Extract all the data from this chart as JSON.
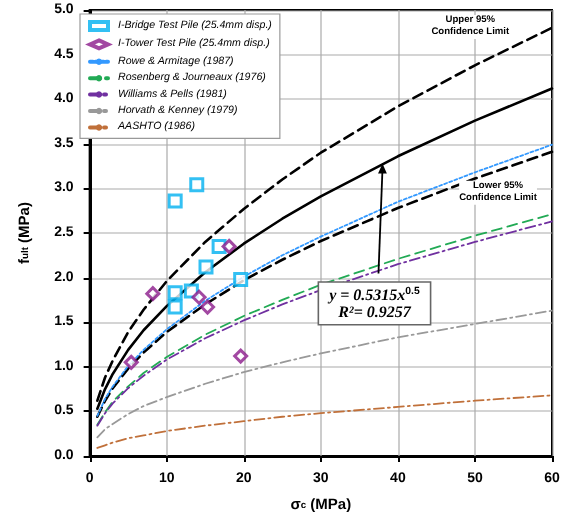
{
  "chart_data": {
    "type": "line",
    "xlabel": "σ$_{c}$ (MPa)",
    "ylabel": "f$_{ult}$ (MPa)",
    "x": [
      1,
      2,
      3,
      5,
      7,
      10,
      15,
      20,
      25,
      30,
      40,
      50,
      60
    ],
    "series": [
      {
        "name": "I-Bridge Test Pile (25.4mm disp.)",
        "type": "scatter",
        "marker": "square",
        "color": "#00b0f0",
        "x": [
          11.1,
          11.1,
          13.2,
          15.1,
          16.8,
          19.6,
          11.1,
          13.9
        ],
        "values": [
          1.83,
          1.67,
          1.85,
          2.12,
          2.35,
          1.98,
          2.86,
          3.04
        ]
      },
      {
        "name": "I-Tower Test Pile (25.4mm disp.)",
        "type": "scatter",
        "marker": "diamond",
        "color": "#8b1a8b",
        "x": [
          18.1,
          8.2,
          14.2,
          15.3,
          5.4,
          19.6
        ],
        "values": [
          2.35,
          1.82,
          1.78,
          1.67,
          1.05,
          1.12
        ]
      },
      {
        "name": "Rowe & Armitage (1987)",
        "color": "#3399ff",
        "line_style": "dotted",
        "values": [
          0.45,
          0.64,
          0.78,
          1.01,
          1.19,
          1.42,
          1.74,
          2.01,
          2.25,
          2.46,
          2.85,
          3.18,
          3.49
        ]
      },
      {
        "name": "Rosenberg & Journeaux (1976)",
        "color": "#22aa55",
        "line_style": "dashed",
        "values": [
          0.35,
          0.49,
          0.61,
          0.78,
          0.93,
          1.11,
          1.36,
          1.57,
          1.75,
          1.92,
          2.21,
          2.47,
          2.71
        ]
      },
      {
        "name": "Williams & Pells (1981)",
        "color": "#7030a0",
        "line_style": "dashdot",
        "values": [
          0.34,
          0.48,
          0.59,
          0.76,
          0.9,
          1.08,
          1.32,
          1.52,
          1.7,
          1.86,
          2.15,
          2.4,
          2.63
        ]
      },
      {
        "name": "Horvath & Kenney (1979)",
        "color": "#999999",
        "line_style": "dashdot",
        "values": [
          0.21,
          0.3,
          0.36,
          0.47,
          0.56,
          0.66,
          0.81,
          0.94,
          1.05,
          1.15,
          1.33,
          1.48,
          1.63
        ]
      },
      {
        "name": "AASHTO (1986)",
        "color": "#c0703a",
        "line_style": "dashdot",
        "values": [
          0.09,
          0.12,
          0.15,
          0.2,
          0.23,
          0.28,
          0.34,
          0.39,
          0.44,
          0.48,
          0.55,
          0.62,
          0.68
        ]
      },
      {
        "color": "#000000",
        "line_style": "solid",
        "values": [
          0.53,
          0.75,
          0.92,
          1.19,
          1.41,
          1.68,
          2.06,
          2.38,
          2.66,
          2.91,
          3.36,
          3.76,
          4.12
        ]
      },
      {
        "color": "#000000",
        "line_style": "dashed",
        "values": [
          0.62,
          0.88,
          1.07,
          1.39,
          1.64,
          1.96,
          2.4,
          2.77,
          3.1,
          3.4,
          3.92,
          4.38,
          4.8
        ]
      },
      {
        "color": "#000000",
        "line_style": "dashed",
        "values": [
          0.44,
          0.62,
          0.76,
          0.98,
          1.16,
          1.39,
          1.7,
          1.97,
          2.2,
          2.41,
          2.78,
          3.11,
          3.41
        ]
      }
    ],
    "xlim": [
      0,
      60
    ],
    "xticks": [
      0,
      10,
      20,
      30,
      40,
      50,
      60
    ],
    "ylim": [
      0,
      5
    ],
    "yticks": [
      {
        "value": 0,
        "label": "0.0"
      },
      {
        "value": 0.5,
        "label": "0.5"
      },
      {
        "value": 1,
        "label": "1.0"
      },
      {
        "value": 1.5,
        "label": "1.5"
      },
      {
        "value": 2,
        "label": "2.0"
      },
      {
        "value": 2.5,
        "label": "2.5"
      },
      {
        "value": 3,
        "label": "3.0"
      },
      {
        "value": 3.5,
        "label": "3.5"
      },
      {
        "value": 4,
        "label": "4.0"
      },
      {
        "value": 4.5,
        "label": "4.5"
      },
      {
        "value": 5,
        "label": "5.0"
      }
    ],
    "grid": true,
    "legend": "top left",
    "annotations": [
      {
        "text": "y = 0.5315x$^{0.5}$\nR²= 0.9257",
        "x": 38,
        "y": 3.28
      },
      {
        "text": "Upper 95%\nConfidence Limit",
        "x": 49.4,
        "y": 4.81
      },
      {
        "text": "Lower 95%\nConfidence Limit",
        "x": 53,
        "y": 2.95
      }
    ]
  }
}
